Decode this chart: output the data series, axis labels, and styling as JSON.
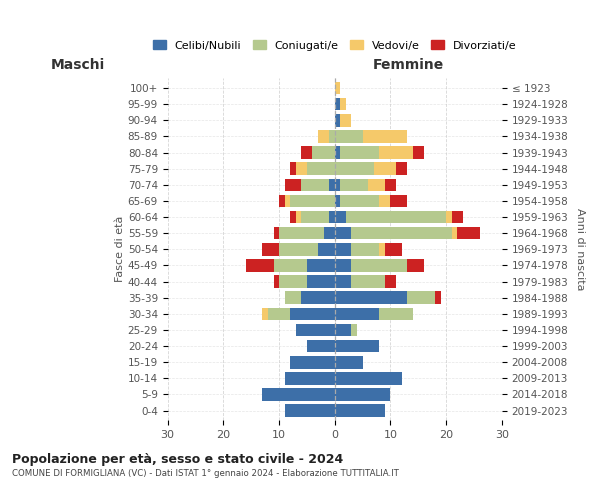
{
  "age_groups": [
    "0-4",
    "5-9",
    "10-14",
    "15-19",
    "20-24",
    "25-29",
    "30-34",
    "35-39",
    "40-44",
    "45-49",
    "50-54",
    "55-59",
    "60-64",
    "65-69",
    "70-74",
    "75-79",
    "80-84",
    "85-89",
    "90-94",
    "95-99",
    "100+"
  ],
  "birth_years": [
    "2019-2023",
    "2014-2018",
    "2009-2013",
    "2004-2008",
    "1999-2003",
    "1994-1998",
    "1989-1993",
    "1984-1988",
    "1979-1983",
    "1974-1978",
    "1969-1973",
    "1964-1968",
    "1959-1963",
    "1954-1958",
    "1949-1953",
    "1944-1948",
    "1939-1943",
    "1934-1938",
    "1929-1933",
    "1924-1928",
    "≤ 1923"
  ],
  "maschi": {
    "celibi": [
      9,
      13,
      9,
      8,
      5,
      7,
      8,
      6,
      5,
      5,
      3,
      2,
      1,
      0,
      1,
      0,
      0,
      0,
      0,
      0,
      0
    ],
    "coniugati": [
      0,
      0,
      0,
      0,
      0,
      0,
      4,
      3,
      5,
      6,
      7,
      8,
      5,
      8,
      5,
      5,
      4,
      1,
      0,
      0,
      0
    ],
    "vedovi": [
      0,
      0,
      0,
      0,
      0,
      0,
      1,
      0,
      0,
      0,
      0,
      0,
      1,
      1,
      0,
      2,
      0,
      2,
      0,
      0,
      0
    ],
    "divorziati": [
      0,
      0,
      0,
      0,
      0,
      0,
      0,
      0,
      1,
      5,
      3,
      1,
      1,
      1,
      3,
      1,
      2,
      0,
      0,
      0,
      0
    ]
  },
  "femmine": {
    "nubili": [
      9,
      10,
      12,
      5,
      8,
      3,
      8,
      13,
      3,
      3,
      3,
      3,
      2,
      1,
      1,
      0,
      1,
      0,
      1,
      1,
      0
    ],
    "coniugati": [
      0,
      0,
      0,
      0,
      0,
      1,
      6,
      5,
      6,
      10,
      5,
      18,
      18,
      7,
      5,
      7,
      7,
      5,
      0,
      0,
      0
    ],
    "vedovi": [
      0,
      0,
      0,
      0,
      0,
      0,
      0,
      0,
      0,
      0,
      1,
      1,
      1,
      2,
      3,
      4,
      6,
      8,
      2,
      1,
      1
    ],
    "divorziati": [
      0,
      0,
      0,
      0,
      0,
      0,
      0,
      1,
      2,
      3,
      3,
      4,
      2,
      3,
      2,
      2,
      2,
      0,
      0,
      0,
      0
    ]
  },
  "colors": {
    "celibi": "#3d6fa8",
    "coniugati": "#b5c98e",
    "vedovi": "#f5c96a",
    "divorziati": "#cc2222"
  },
  "title": "Popolazione per età, sesso e stato civile - 2024",
  "subtitle": "COMUNE DI FORMIGLIANA (VC) - Dati ISTAT 1° gennaio 2024 - Elaborazione TUTTITALIA.IT",
  "xlabel_left": "Maschi",
  "xlabel_right": "Femmine",
  "ylabel_left": "Fasce di età",
  "ylabel_right": "Anni di nascita",
  "xlim": 30,
  "legend_labels": [
    "Celibi/Nubili",
    "Coniugati/e",
    "Vedovi/e",
    "Divorziati/e"
  ],
  "background_color": "#ffffff",
  "grid_color": "#cccccc"
}
